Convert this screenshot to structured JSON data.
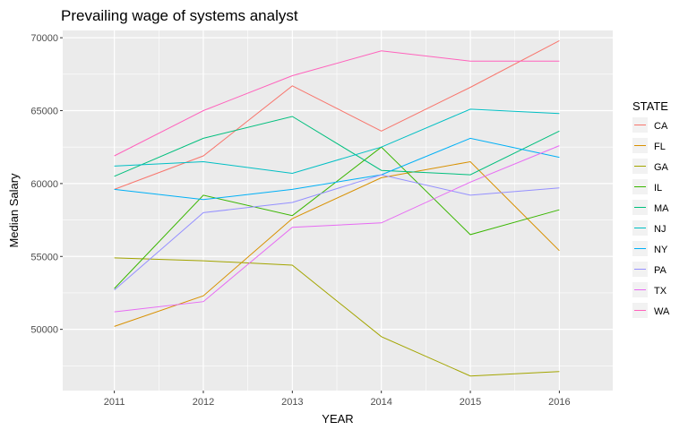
{
  "chart_data": {
    "type": "line",
    "title": "Prevailing wage of systems analyst",
    "xlabel": "YEAR",
    "ylabel": "Median Salary",
    "x": [
      2011,
      2012,
      2013,
      2014,
      2015,
      2016
    ],
    "xlim": [
      2010.42,
      2016.6
    ],
    "ylim": [
      45800,
      70500
    ],
    "yticks": [
      50000,
      55000,
      60000,
      65000,
      70000
    ],
    "ytick_labels": [
      "50000",
      "55000",
      "60000",
      "65000",
      "70000"
    ],
    "grid": true,
    "legend_title": "STATE",
    "legend_position": "right",
    "series": [
      {
        "name": "CA",
        "color": "#F8766D",
        "values": [
          59600,
          61900,
          66700,
          63600,
          66600,
          69800
        ]
      },
      {
        "name": "FL",
        "color": "#D89000",
        "values": [
          50200,
          52300,
          57600,
          60400,
          61500,
          55400
        ]
      },
      {
        "name": "GA",
        "color": "#A3A500",
        "values": [
          54900,
          54700,
          54400,
          49500,
          46800,
          47100
        ]
      },
      {
        "name": "IL",
        "color": "#39B600",
        "values": [
          52800,
          59200,
          57800,
          62500,
          56500,
          58200
        ]
      },
      {
        "name": "MA",
        "color": "#00BF7D",
        "values": [
          60500,
          63100,
          64600,
          60900,
          60600,
          63600
        ]
      },
      {
        "name": "NJ",
        "color": "#00BFC4",
        "values": [
          61200,
          61500,
          60700,
          62500,
          65100,
          64800
        ]
      },
      {
        "name": "NY",
        "color": "#00B0F6",
        "values": [
          59600,
          58900,
          59600,
          60600,
          63100,
          61800
        ]
      },
      {
        "name": "PA",
        "color": "#9590FF",
        "values": [
          52700,
          58000,
          58700,
          60600,
          59200,
          59700
        ]
      },
      {
        "name": "TX",
        "color": "#E76BF3",
        "values": [
          51200,
          51900,
          57000,
          57300,
          60100,
          62600
        ]
      },
      {
        "name": "WA",
        "color": "#FF62BC",
        "values": [
          61900,
          65000,
          67400,
          69100,
          68400,
          68400
        ]
      }
    ]
  }
}
